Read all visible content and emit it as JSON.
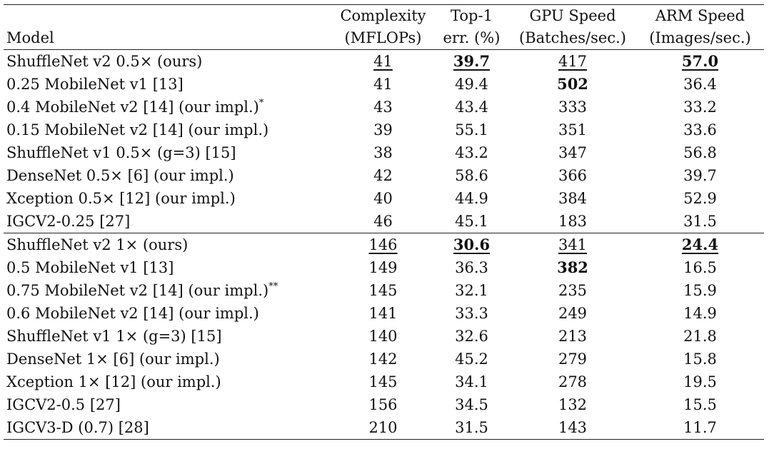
{
  "headers": {
    "model": "Model",
    "complexity": [
      "Complexity",
      "(MFLOPs)"
    ],
    "top1": [
      "Top-1",
      "err. (%)"
    ],
    "gpu": [
      "GPU Speed",
      "(Batches/sec.)"
    ],
    "arm": [
      "ARM Speed",
      "(Images/sec.)"
    ]
  },
  "groups": [
    {
      "rows": [
        {
          "model": "ShuffleNet v2 0.5× (ours)",
          "sup": "",
          "complexity": "41",
          "top1": "39.7",
          "gpu": "417",
          "arm": "57.0",
          "style": {
            "complexity": "u",
            "top1": "b u",
            "gpu": "u",
            "arm": "b u"
          }
        },
        {
          "model": "0.25 MobileNet v1 [13]",
          "sup": "",
          "complexity": "41",
          "top1": "49.4",
          "gpu": "502",
          "arm": "36.4",
          "style": {
            "gpu": "b"
          }
        },
        {
          "model": "0.4 MobileNet v2 [14] (our impl.)",
          "sup": "*",
          "complexity": "43",
          "top1": "43.4",
          "gpu": "333",
          "arm": "33.2"
        },
        {
          "model": "0.15 MobileNet v2 [14] (our impl.)",
          "sup": "",
          "complexity": "39",
          "top1": "55.1",
          "gpu": "351",
          "arm": "33.6"
        },
        {
          "model": "ShuffleNet v1 0.5× (g=3) [15]",
          "sup": "",
          "complexity": "38",
          "top1": "43.2",
          "gpu": "347",
          "arm": "56.8"
        },
        {
          "model": "DenseNet 0.5× [6] (our impl.)",
          "sup": "",
          "complexity": "42",
          "top1": "58.6",
          "gpu": "366",
          "arm": "39.7"
        },
        {
          "model": "Xception 0.5× [12] (our impl.)",
          "sup": "",
          "complexity": "40",
          "top1": "44.9",
          "gpu": "384",
          "arm": "52.9"
        },
        {
          "model": "IGCV2-0.25 [27]",
          "sup": "",
          "complexity": "46",
          "top1": "45.1",
          "gpu": "183",
          "arm": "31.5"
        }
      ]
    },
    {
      "rows": [
        {
          "model": "ShuffleNet v2 1× (ours)",
          "sup": "",
          "complexity": "146",
          "top1": "30.6",
          "gpu": "341",
          "arm": "24.4",
          "style": {
            "complexity": "u",
            "top1": "b u",
            "gpu": "u",
            "arm": "b u"
          }
        },
        {
          "model": "0.5 MobileNet v1 [13]",
          "sup": "",
          "complexity": "149",
          "top1": "36.3",
          "gpu": "382",
          "arm": "16.5",
          "style": {
            "gpu": "b"
          }
        },
        {
          "model": "0.75 MobileNet v2 [14] (our impl.)",
          "sup": "**",
          "complexity": "145",
          "top1": "32.1",
          "gpu": "235",
          "arm": "15.9"
        },
        {
          "model": "0.6 MobileNet v2 [14] (our impl.)",
          "sup": "",
          "complexity": "141",
          "top1": "33.3",
          "gpu": "249",
          "arm": "14.9"
        },
        {
          "model": "ShuffleNet v1 1× (g=3) [15]",
          "sup": "",
          "complexity": "140",
          "top1": "32.6",
          "gpu": "213",
          "arm": "21.8"
        },
        {
          "model": "DenseNet 1× [6] (our impl.)",
          "sup": "",
          "complexity": "142",
          "top1": "45.2",
          "gpu": "279",
          "arm": "15.8"
        },
        {
          "model": "Xception 1× [12] (our impl.)",
          "sup": "",
          "complexity": "145",
          "top1": "34.1",
          "gpu": "278",
          "arm": "19.5"
        },
        {
          "model": "IGCV2-0.5 [27]",
          "sup": "",
          "complexity": "156",
          "top1": "34.5",
          "gpu": "132",
          "arm": "15.5"
        },
        {
          "model": "IGCV3-D (0.7) [28]",
          "sup": "",
          "complexity": "210",
          "top1": "31.5",
          "gpu": "143",
          "arm": "11.7"
        }
      ]
    }
  ]
}
